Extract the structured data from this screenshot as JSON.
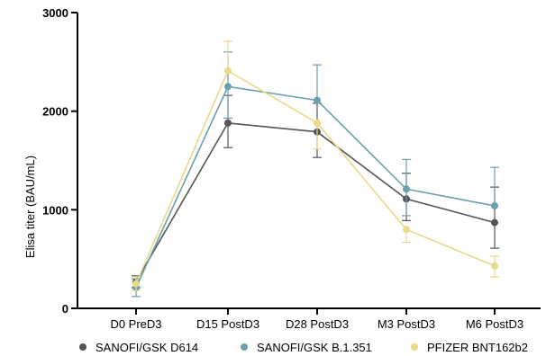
{
  "chart_data": {
    "type": "line",
    "categories": [
      "D0 PreD3",
      "D15 PostD3",
      "D28 PostD3",
      "M3 PostD3",
      "M6 PostD3"
    ],
    "ylabel": "Elisa titer (BAU/mL)",
    "ylim": [
      0,
      3000
    ],
    "yticks": [
      0,
      1000,
      2000,
      3000
    ],
    "ytick_labels": [
      "0",
      "1000",
      "2000",
      "3000"
    ],
    "legend_position": "bottom",
    "grid": false,
    "series": [
      {
        "name": "SANOFI/GSK D614",
        "color": "#555555",
        "values": [
          270,
          1880,
          1790,
          1110,
          870
        ],
        "err_low": [
          60,
          250,
          260,
          220,
          260
        ],
        "err_high": [
          60,
          280,
          290,
          260,
          360
        ]
      },
      {
        "name": "SANOFI/GSK B.1.351",
        "color": "#6a9fac",
        "values": [
          210,
          2250,
          2110,
          1210,
          1040
        ],
        "err_low": [
          90,
          320,
          0,
          270,
          0
        ],
        "err_high": [
          90,
          350,
          360,
          300,
          390
        ]
      },
      {
        "name": "PFIZER BNT162b2",
        "color": "#e9d98a",
        "values": [
          250,
          2410,
          1880,
          800,
          430
        ],
        "err_low": [
          70,
          0,
          260,
          130,
          110
        ],
        "err_high": [
          70,
          300,
          0,
          0,
          100
        ]
      }
    ]
  }
}
